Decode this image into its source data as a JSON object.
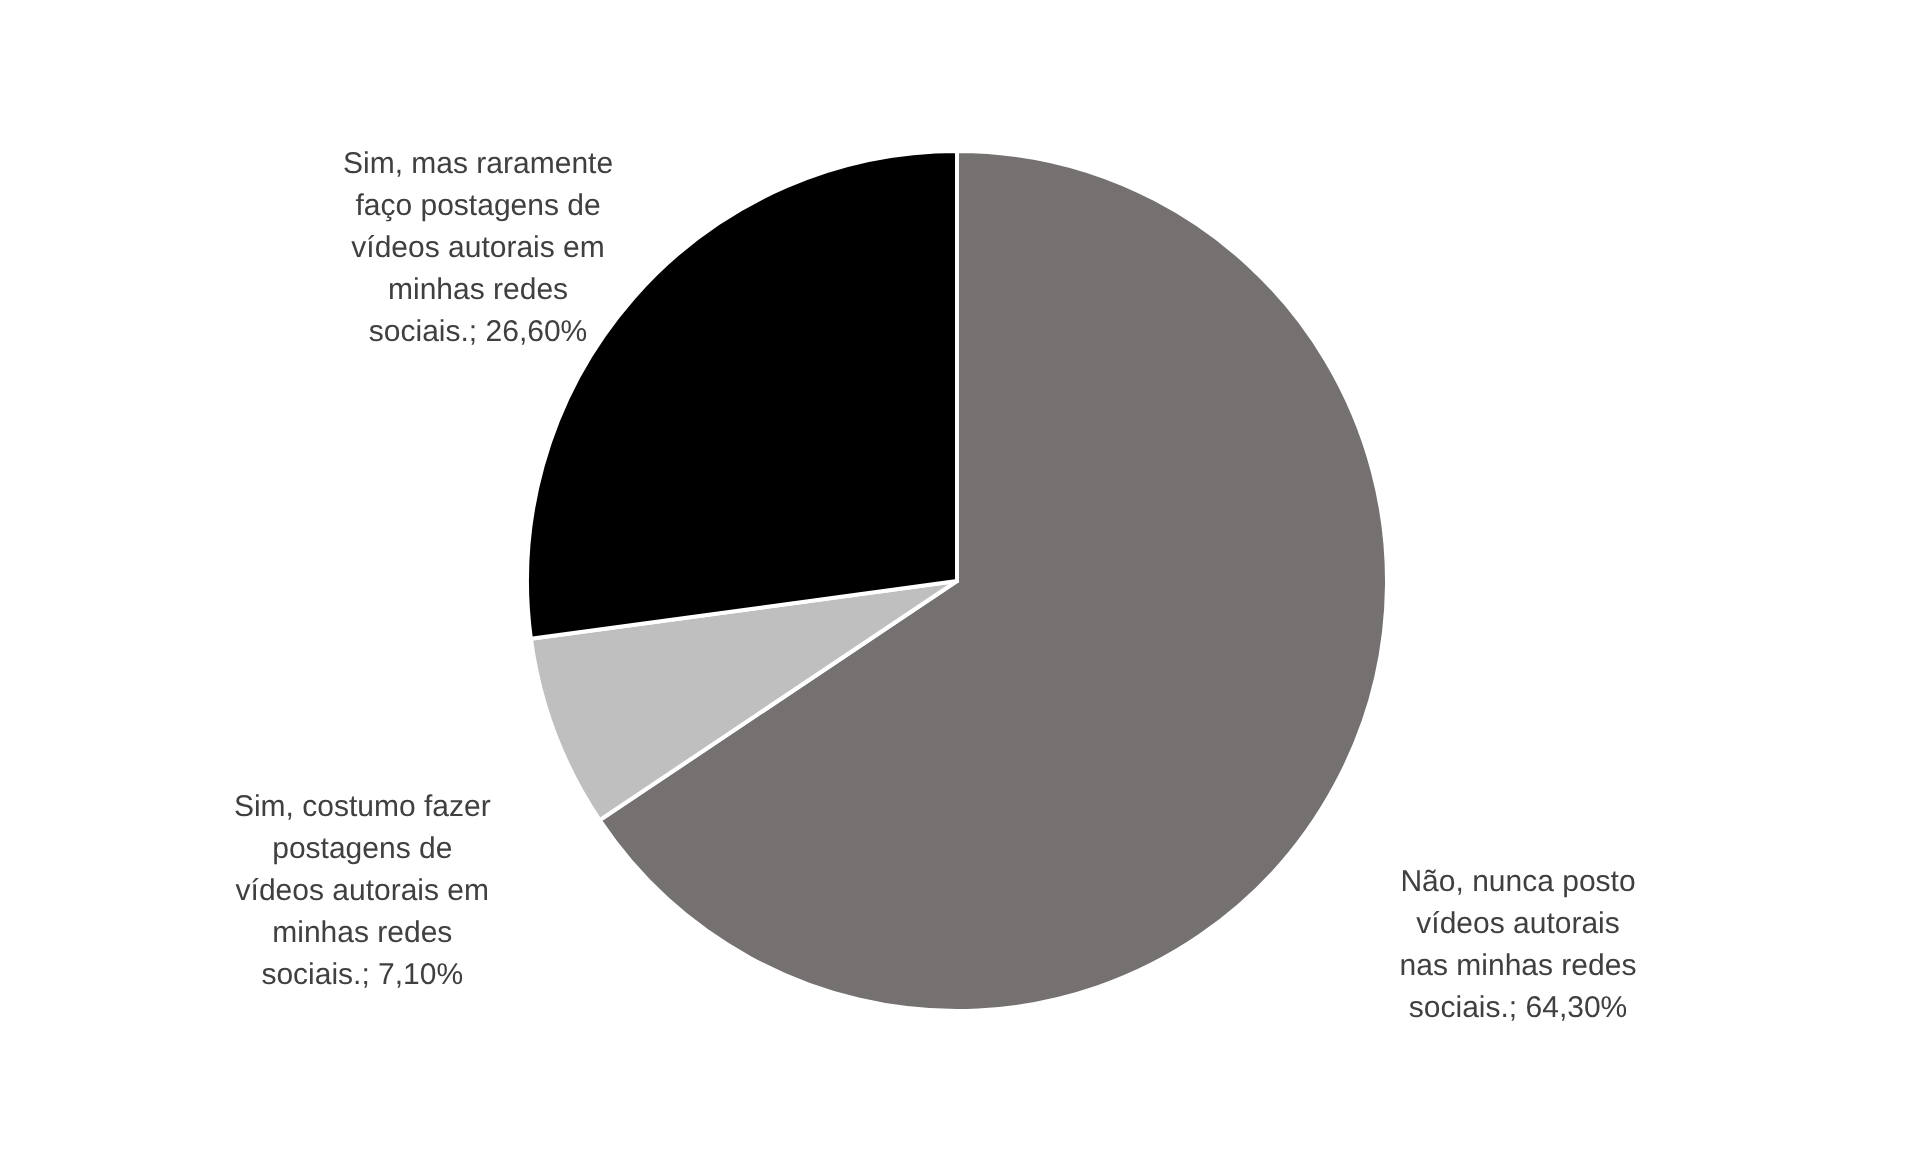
{
  "chart_data": {
    "type": "pie",
    "categories": [
      "Não, nunca posto vídeos autorais nas minhas redes sociais.",
      "Sim, costumo fazer postagens de vídeos autorais em minhas redes sociais.",
      "Sim, mas raramente faço postagens de vídeos autorais em minhas redes sociais."
    ],
    "values": [
      64.3,
      7.1,
      26.6
    ],
    "colors": [
      "#767171",
      "#bfbfbf",
      "#000000"
    ],
    "value_labels": [
      "64,30%",
      "7,10%",
      "26,60%"
    ]
  }
}
